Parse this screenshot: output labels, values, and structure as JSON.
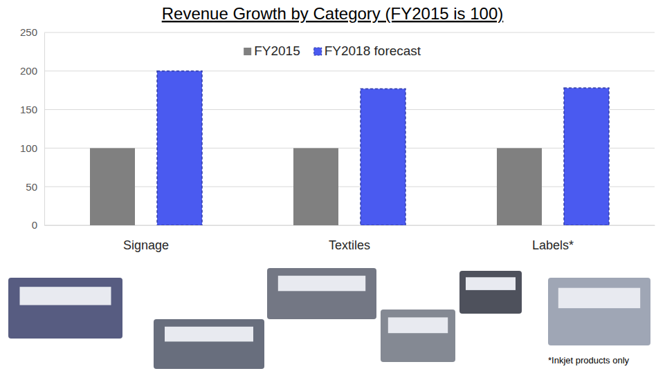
{
  "chart_data": {
    "type": "bar",
    "title": "Revenue Growth by Category (FY2015 is 100)",
    "categories": [
      "Signage",
      "Textiles",
      "Labels*"
    ],
    "series": [
      {
        "name": "FY2015",
        "color": "#808080",
        "values": [
          100,
          100,
          100
        ]
      },
      {
        "name": "FY2018 forecast",
        "color": "#4a5af0",
        "line_style": "dashed",
        "values": [
          200,
          177,
          178
        ]
      }
    ],
    "ylim": [
      0,
      250
    ],
    "yticks": [
      0,
      50,
      100,
      150,
      200,
      250
    ],
    "grid": true,
    "legend": "top",
    "annotations": [
      "*Inkjet products only"
    ]
  }
}
